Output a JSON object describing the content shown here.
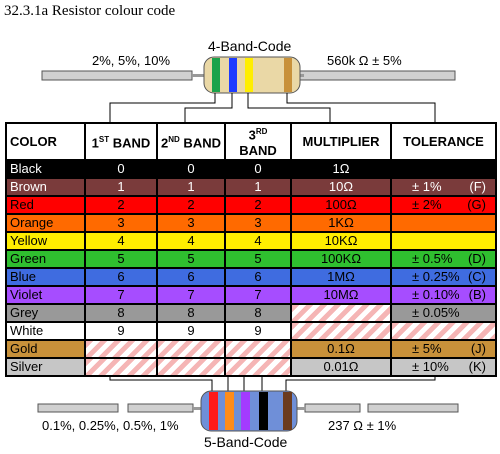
{
  "caption": "32.3.1a Resistor colour code",
  "four_band": {
    "title": "4-Band-Code",
    "left_label": "2%, 5%, 10%",
    "right_label": "560k Ω ± 5%",
    "bands": [
      "#1aa34a",
      "#1e3cff",
      "#ffee00",
      "#c8913a"
    ]
  },
  "five_band": {
    "title": "5-Band-Code",
    "left_label": "0.1%, 0.25%, 0.5%, 1%",
    "right_label": "237 Ω ± 1%",
    "bands": [
      "#ff1a1a",
      "#ff8c1a",
      "#a33bff",
      "#000000",
      "#6b3b1f"
    ]
  },
  "table": {
    "headers": {
      "color": "COLOR",
      "band1": "1ST BAND",
      "band2": "2ND BAND",
      "band3": "3RD BAND",
      "multiplier": "MULTIPLIER",
      "tolerance": "TOLERANCE"
    },
    "rows": [
      {
        "name": "Black",
        "bg": "#000000",
        "fg": "#ffffff",
        "b1": "0",
        "b2": "0",
        "b3": "0",
        "mult": "1Ω",
        "tol": "",
        "code": ""
      },
      {
        "name": "Brown",
        "bg": "#7a3b3b",
        "fg": "#ffffff",
        "b1": "1",
        "b2": "1",
        "b3": "1",
        "mult": "10Ω",
        "tol": "± 1%",
        "code": "(F)"
      },
      {
        "name": "Red",
        "bg": "#ff0000",
        "fg": "#000000",
        "b1": "2",
        "b2": "2",
        "b3": "2",
        "mult": "100Ω",
        "tol": "± 2%",
        "code": "(G)"
      },
      {
        "name": "Orange",
        "bg": "#ff6a00",
        "fg": "#000000",
        "b1": "3",
        "b2": "3",
        "b3": "3",
        "mult": "1KΩ",
        "tol": "",
        "code": ""
      },
      {
        "name": "Yellow",
        "bg": "#ffee00",
        "fg": "#000000",
        "b1": "4",
        "b2": "4",
        "b3": "4",
        "mult": "10KΩ",
        "tol": "",
        "code": ""
      },
      {
        "name": "Green",
        "bg": "#2fbf2f",
        "fg": "#000000",
        "b1": "5",
        "b2": "5",
        "b3": "5",
        "mult": "100KΩ",
        "tol": "± 0.5%",
        "code": "(D)"
      },
      {
        "name": "Blue",
        "bg": "#3f6ce0",
        "fg": "#000000",
        "b1": "6",
        "b2": "6",
        "b3": "6",
        "mult": "1MΩ",
        "tol": "± 0.25%",
        "code": "(C)"
      },
      {
        "name": "Violet",
        "bg": "#a64dff",
        "fg": "#000000",
        "b1": "7",
        "b2": "7",
        "b3": "7",
        "mult": "10MΩ",
        "tol": "± 0.10%",
        "code": "(B)"
      },
      {
        "name": "Grey",
        "bg": "#999999",
        "fg": "#000000",
        "b1": "8",
        "b2": "8",
        "b3": "8",
        "mult": "",
        "tol": "± 0.05%",
        "code": ""
      },
      {
        "name": "White",
        "bg": "#ffffff",
        "fg": "#000000",
        "b1": "9",
        "b2": "9",
        "b3": "9",
        "mult": "",
        "tol": "",
        "code": ""
      },
      {
        "name": "Gold",
        "bg": "#c8913a",
        "fg": "#000000",
        "b1": "",
        "b2": "",
        "b3": "",
        "mult": "0.1Ω",
        "tol": "± 5%",
        "code": "(J)"
      },
      {
        "name": "Silver",
        "bg": "#c6c6c6",
        "fg": "#000000",
        "b1": "",
        "b2": "",
        "b3": "",
        "mult": "0.01Ω",
        "tol": "± 10%",
        "code": "(K)"
      }
    ]
  }
}
